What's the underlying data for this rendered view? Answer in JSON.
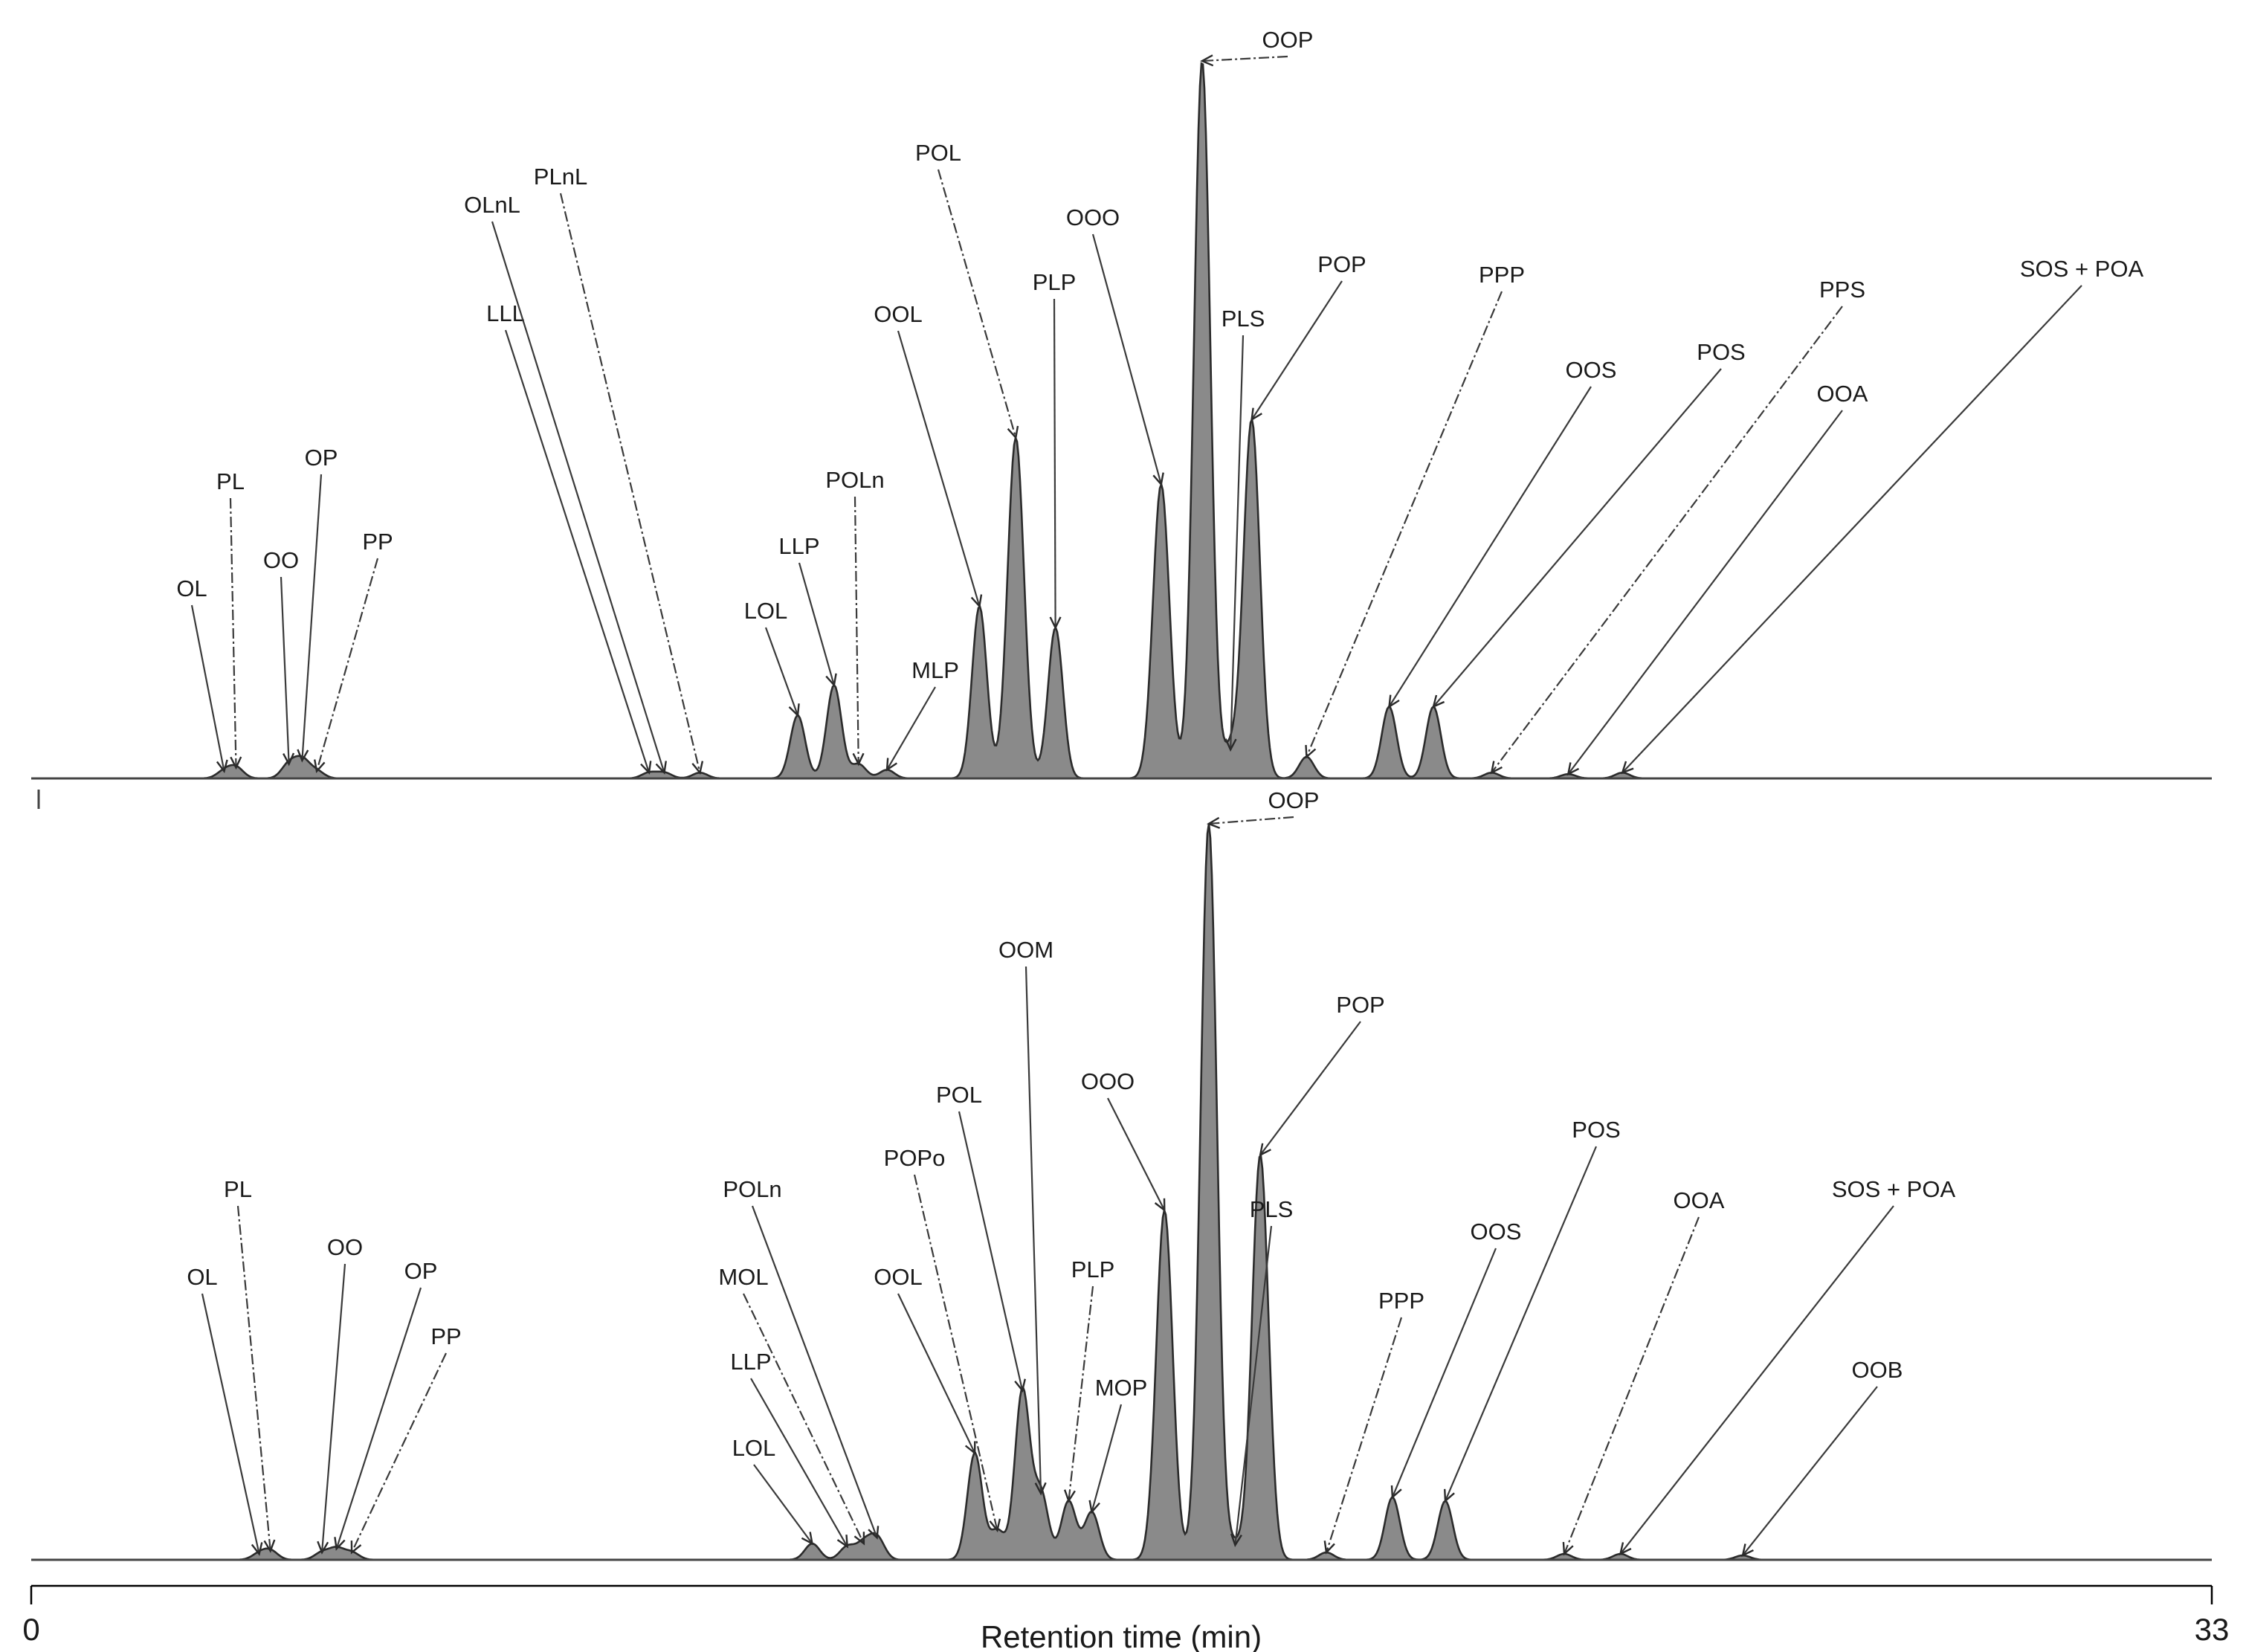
{
  "chart_data": {
    "type": "line",
    "xlabel": "Retention time (min)",
    "xlim": [
      0,
      33
    ],
    "x_ticks": [
      "0",
      "33"
    ],
    "ylabel": "",
    "grid": false,
    "panels": [
      {
        "peaks": [
          {
            "label": "OL",
            "t": 2.92,
            "h": 0.01
          },
          {
            "label": "PL",
            "t": 3.1,
            "h": 0.015
          },
          {
            "label": "OO",
            "t": 3.9,
            "h": 0.02
          },
          {
            "label": "OP",
            "t": 4.1,
            "h": 0.025
          },
          {
            "label": "PP",
            "t": 4.32,
            "h": 0.01
          },
          {
            "label": "LLL",
            "t": 9.35,
            "h": 0.008
          },
          {
            "label": "OLnL",
            "t": 9.58,
            "h": 0.008
          },
          {
            "label": "PLnL",
            "t": 10.12,
            "h": 0.008
          },
          {
            "label": "LOL",
            "t": 11.6,
            "h": 0.088
          },
          {
            "label": "LLP",
            "t": 12.15,
            "h": 0.13
          },
          {
            "label": "POLn",
            "t": 12.52,
            "h": 0.02
          },
          {
            "label": "MLP",
            "t": 12.95,
            "h": 0.012
          },
          {
            "label": "OOL",
            "t": 14.35,
            "h": 0.24
          },
          {
            "label": "POL",
            "t": 14.9,
            "h": 0.475
          },
          {
            "label": "PLP",
            "t": 15.5,
            "h": 0.21
          },
          {
            "label": "OOO",
            "t": 17.1,
            "h": 0.41
          },
          {
            "label": "OOP",
            "t": 17.72,
            "h": 1.0
          },
          {
            "label": "PLS",
            "t": 18.15,
            "h": 0.04
          },
          {
            "label": "POP",
            "t": 18.47,
            "h": 0.5
          },
          {
            "label": "PPP",
            "t": 19.3,
            "h": 0.03
          },
          {
            "label": "OOS",
            "t": 20.55,
            "h": 0.1
          },
          {
            "label": "POS",
            "t": 21.22,
            "h": 0.1
          },
          {
            "label": "PPS",
            "t": 22.1,
            "h": 0.008
          },
          {
            "label": "OOA",
            "t": 23.26,
            "h": 0.006
          },
          {
            "label": "SOS + POA",
            "t": 24.08,
            "h": 0.008
          }
        ]
      },
      {
        "peaks": [
          {
            "label": "OL",
            "t": 3.45,
            "h": 0.008
          },
          {
            "label": "PL",
            "t": 3.62,
            "h": 0.012
          },
          {
            "label": "OO",
            "t": 4.4,
            "h": 0.01
          },
          {
            "label": "OP",
            "t": 4.62,
            "h": 0.015
          },
          {
            "label": "PP",
            "t": 4.85,
            "h": 0.01
          },
          {
            "label": "LOL",
            "t": 11.82,
            "h": 0.022
          },
          {
            "label": "LLP",
            "t": 12.35,
            "h": 0.018
          },
          {
            "label": "MOL",
            "t": 12.6,
            "h": 0.022
          },
          {
            "label": "POLn",
            "t": 12.8,
            "h": 0.03
          },
          {
            "label": "OOL",
            "t": 14.28,
            "h": 0.145
          },
          {
            "label": "POPo",
            "t": 14.62,
            "h": 0.04
          },
          {
            "label": "POL",
            "t": 15.0,
            "h": 0.23
          },
          {
            "label": "OOM",
            "t": 15.28,
            "h": 0.09
          },
          {
            "label": "PLP",
            "t": 15.7,
            "h": 0.08
          },
          {
            "label": "MOP",
            "t": 16.05,
            "h": 0.065
          },
          {
            "label": "OOO",
            "t": 17.15,
            "h": 0.475
          },
          {
            "label": "OOP",
            "t": 17.82,
            "h": 1.0
          },
          {
            "label": "PLS",
            "t": 18.22,
            "h": 0.02
          },
          {
            "label": "POP",
            "t": 18.6,
            "h": 0.55
          },
          {
            "label": "PPP",
            "t": 19.6,
            "h": 0.01
          },
          {
            "label": "OOS",
            "t": 20.6,
            "h": 0.085
          },
          {
            "label": "POS",
            "t": 21.4,
            "h": 0.08
          },
          {
            "label": "OOA",
            "t": 23.2,
            "h": 0.008
          },
          {
            "label": "SOS + POA",
            "t": 24.05,
            "h": 0.008
          },
          {
            "label": "OOB",
            "t": 25.9,
            "h": 0.006
          }
        ]
      }
    ]
  }
}
